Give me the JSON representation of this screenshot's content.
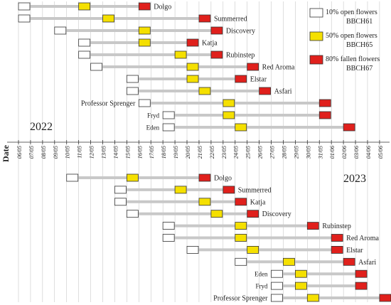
{
  "chart_data": {
    "type": "gantt",
    "axis_title": "Date",
    "x_ticks": [
      "06/05",
      "07/05",
      "08/05",
      "09/05",
      "10/05",
      "11/05",
      "12/05",
      "13/05",
      "14/05",
      "15/05",
      "16/05",
      "17/05",
      "18/05",
      "19/05",
      "20/05",
      "21/05",
      "22/05",
      "23/05",
      "24/05",
      "25/05",
      "26/05",
      "27/05",
      "28/05",
      "29/05",
      "30/05",
      "31/05",
      "01/06",
      "02/06",
      "03/06",
      "04/06",
      "05/06"
    ],
    "legend": [
      {
        "key": "bbch61",
        "label_1": "10% open flowers",
        "label_2": "BBCH61",
        "color": "#ffffff"
      },
      {
        "key": "bbch65",
        "label_1": "50% open flowers",
        "label_2": "BBCH65",
        "color": "#f5e000"
      },
      {
        "key": "bbch67",
        "label_1": "80% fallen flowers",
        "label_2": "BBCH67",
        "color": "#e0201c"
      }
    ],
    "colors": {
      "open10": "#ffffff",
      "open50": "#f5e000",
      "fallen80": "#e0201c",
      "bar": "#c8c8c8",
      "grid": "#bdbdbd"
    },
    "series": [
      {
        "year": "2022",
        "rows": [
          {
            "cultivar": "Dolgo",
            "bbch61": "06/05",
            "bbch65": "11/05",
            "bbch67": "16/05"
          },
          {
            "cultivar": "Summerred",
            "bbch61": "06/05",
            "bbch65": "13/05",
            "bbch67": "21/05"
          },
          {
            "cultivar": "Discovery",
            "bbch61": "09/05",
            "bbch65": "16/05",
            "bbch67": "22/05"
          },
          {
            "cultivar": "Katja",
            "bbch61": "11/05",
            "bbch65": "16/05",
            "bbch67": "20/05"
          },
          {
            "cultivar": "Rubinstep",
            "bbch61": "11/05",
            "bbch65": "19/05",
            "bbch67": "22/05"
          },
          {
            "cultivar": "Red Aroma",
            "bbch61": "12/05",
            "bbch65": "20/05",
            "bbch67": "25/05"
          },
          {
            "cultivar": "Elstar",
            "bbch61": "15/05",
            "bbch65": "20/05",
            "bbch67": "24/05"
          },
          {
            "cultivar": "Asfari",
            "bbch61": "15/05",
            "bbch65": "21/05",
            "bbch67": "26/05"
          },
          {
            "cultivar": "Professor Sprenger",
            "bbch61": "16/05",
            "bbch65": "23/05",
            "bbch67": "31/05"
          },
          {
            "cultivar": "Fryd",
            "bbch61": "18/05",
            "bbch65": "23/05",
            "bbch67": "31/05"
          },
          {
            "cultivar": "Eden",
            "bbch61": "18/05",
            "bbch65": "24/05",
            "bbch67": "02/06"
          }
        ]
      },
      {
        "year": "2023",
        "rows": [
          {
            "cultivar": "Dolgo",
            "bbch61": "10/05",
            "bbch65": "15/05",
            "bbch67": "21/05"
          },
          {
            "cultivar": "Summerred",
            "bbch61": "14/05",
            "bbch65": "19/05",
            "bbch67": "23/05"
          },
          {
            "cultivar": "Katja",
            "bbch61": "14/05",
            "bbch65": "21/05",
            "bbch67": "24/05"
          },
          {
            "cultivar": "Discovery",
            "bbch61": "15/05",
            "bbch65": "22/05",
            "bbch67": "25/05"
          },
          {
            "cultivar": "Rubinstep",
            "bbch61": "18/05",
            "bbch65": "24/05",
            "bbch67": "30/05"
          },
          {
            "cultivar": "Red Aroma",
            "bbch61": "18/05",
            "bbch65": "24/05",
            "bbch67": "01/06"
          },
          {
            "cultivar": "Elstar",
            "bbch61": "20/05",
            "bbch65": "25/05",
            "bbch67": "01/06"
          },
          {
            "cultivar": "Asfari",
            "bbch61": "24/05",
            "bbch65": "28/05",
            "bbch67": "02/06"
          },
          {
            "cultivar": "Eden",
            "bbch61": "27/05",
            "bbch65": "29/05",
            "bbch67": "03/06"
          },
          {
            "cultivar": "Fryd",
            "bbch61": "27/05",
            "bbch65": "29/05",
            "bbch67": "03/06"
          },
          {
            "cultivar": "Professor Sprenger",
            "bbch61": "27/05",
            "bbch65": "30/05",
            "bbch67": "05/06"
          }
        ]
      }
    ]
  }
}
